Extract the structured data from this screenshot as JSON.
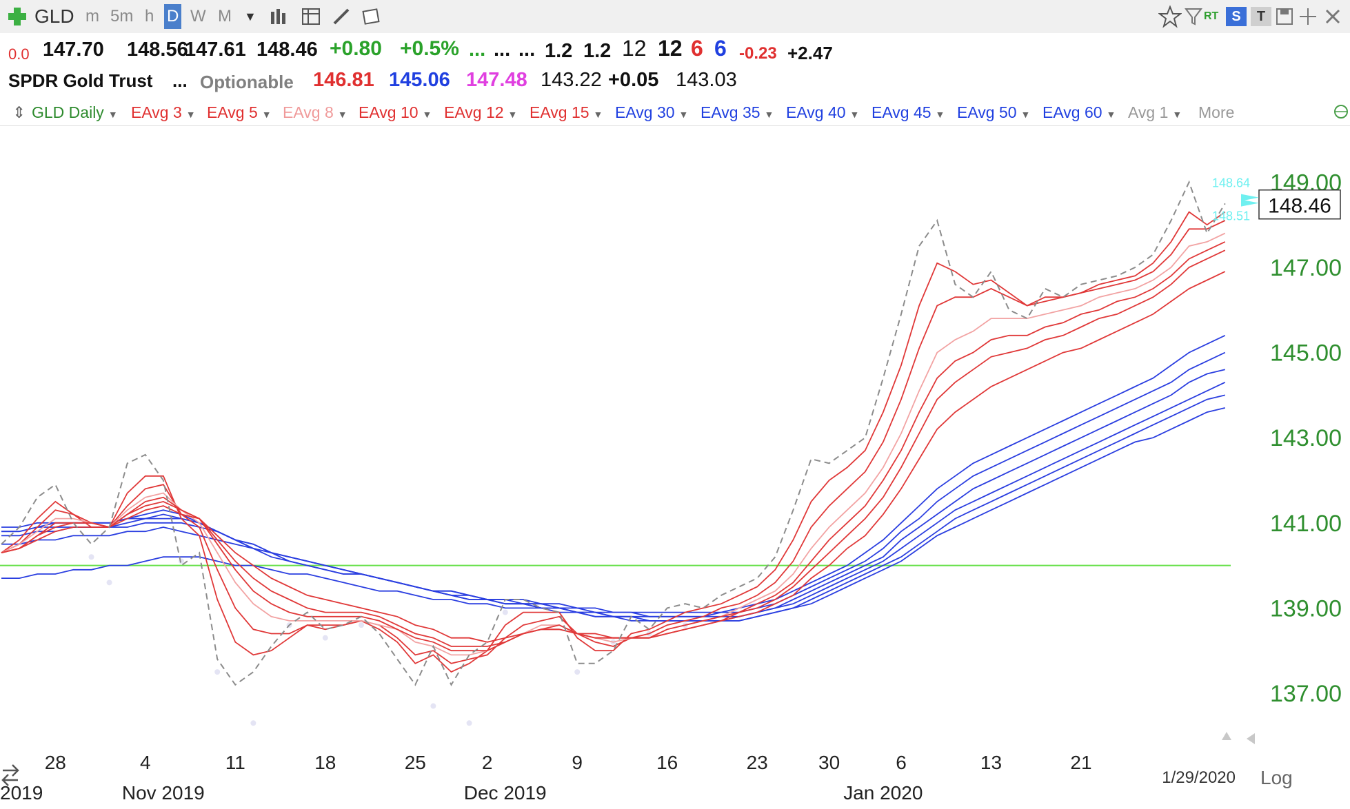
{
  "toolbar": {
    "symbol": "GLD",
    "intervals": [
      "m",
      "5m",
      "h",
      "D",
      "W",
      "M"
    ],
    "active_interval": "D",
    "right_icons": [
      "star-icon",
      "filter-icon",
      "rt-icon",
      "s-icon",
      "t-icon",
      "save-icon",
      "move-icon",
      "close-icon"
    ],
    "rt_label": "RT",
    "s_label": "S",
    "t_label": "T"
  },
  "quote": {
    "row1": {
      "v0": "0.0",
      "open": "147.70",
      "high": "148.56",
      "low": "147.61",
      "close": "148.46",
      "change": "+0.80",
      "change_pct": "+0.5%",
      "dots1": "...",
      "dots2": "...",
      "dots3": "...",
      "v1": "1.2",
      "v2": "1.2",
      "v3": "12",
      "v4": "12",
      "v5": "6",
      "v6": "6",
      "v7": "-0.23",
      "v8": "+2.47"
    },
    "row2": {
      "name": "SPDR Gold Trust",
      "dots": "...",
      "optionable": "Optionable",
      "v1": "146.81",
      "v2": "145.06",
      "v3": "147.48",
      "v4": "143.22",
      "v5": "+0.05",
      "v6": "143.03"
    }
  },
  "indicators": [
    {
      "label": "GLD Daily",
      "color": "#2e8b2e"
    },
    {
      "label": "EAvg 3",
      "color": "#e03030"
    },
    {
      "label": "EAvg 5",
      "color": "#e03030"
    },
    {
      "label": "EAvg 8",
      "color": "#f09a9a"
    },
    {
      "label": "EAvg 10",
      "color": "#e03030"
    },
    {
      "label": "EAvg 12",
      "color": "#e03030"
    },
    {
      "label": "EAvg 15",
      "color": "#e03030"
    },
    {
      "label": "EAvg 30",
      "color": "#2040e0"
    },
    {
      "label": "EAvg 35",
      "color": "#2040e0"
    },
    {
      "label": "EAvg 40",
      "color": "#2040e0"
    },
    {
      "label": "EAvg 45",
      "color": "#2040e0"
    },
    {
      "label": "EAvg 50",
      "color": "#2040e0"
    },
    {
      "label": "EAvg 60",
      "color": "#2040e0"
    },
    {
      "label": "Avg 1",
      "color": "#999999"
    },
    {
      "label": "More",
      "color": "#999999"
    }
  ],
  "chart_data": {
    "type": "line",
    "y_ticks": [
      137,
      139,
      141,
      143,
      145,
      147,
      149
    ],
    "y_tick_labels": [
      "137.00",
      "139.00",
      "141.00",
      "143.00",
      "145.00",
      "147.00",
      "149.00"
    ],
    "ylim": [
      135.9,
      150.3
    ],
    "last_price_label": "148.46",
    "last_price": 148.46,
    "flag_labels": [
      "148.64",
      "148.51"
    ],
    "flag_values": [
      148.64,
      148.51
    ],
    "reference_line": 140.0,
    "x_tick_labels": [
      "28",
      "4",
      "11",
      "18",
      "25",
      "2",
      "9",
      "16",
      "23",
      "30",
      "6",
      "13",
      "21"
    ],
    "x_tick_index": [
      3,
      8,
      13,
      18,
      23,
      27,
      32,
      37,
      42,
      46,
      50,
      55,
      60
    ],
    "month_labels": [
      "2019",
      "Nov 2019",
      "Dec 2019",
      "Jan 2020"
    ],
    "month_label_index": [
      0,
      8,
      27,
      48
    ],
    "date_label": "1/29/2020",
    "scale_label": "Log",
    "price": [
      140.5,
      140.9,
      141.6,
      141.9,
      141.0,
      140.5,
      140.9,
      142.4,
      142.6,
      142.0,
      140.0,
      140.3,
      137.8,
      137.2,
      137.5,
      138.1,
      138.6,
      138.9,
      138.5,
      138.6,
      138.8,
      138.4,
      137.8,
      137.2,
      138.1,
      137.2,
      137.9,
      138.2,
      139.2,
      139.2,
      139.0,
      138.9,
      137.7,
      137.7,
      138.0,
      138.8,
      138.5,
      139.0,
      139.1,
      139.0,
      139.3,
      139.5,
      139.7,
      140.2,
      141.3,
      142.5,
      142.4,
      142.7,
      143.0,
      144.4,
      145.9,
      147.5,
      148.1,
      146.6,
      146.3,
      146.9,
      146.0,
      145.8,
      146.5,
      146.3,
      146.6,
      146.7,
      146.8,
      147.0,
      147.3,
      148.1,
      149.0,
      147.8,
      148.5
    ],
    "lows": [
      [
        5,
        140.2
      ],
      [
        6,
        139.6
      ],
      [
        10,
        140.1
      ],
      [
        12,
        137.5
      ],
      [
        14,
        136.3
      ],
      [
        16,
        138.6
      ],
      [
        18,
        138.3
      ],
      [
        20,
        138.6
      ],
      [
        24,
        136.7
      ],
      [
        26,
        136.3
      ],
      [
        28,
        138.9
      ],
      [
        32,
        137.5
      ],
      [
        34,
        138.2
      ],
      [
        36,
        138.4
      ],
      [
        38,
        138.6
      ]
    ],
    "series_red": [
      {
        "name": "EAvg 3",
        "values": [
          140.3,
          140.6,
          141.1,
          141.5,
          141.2,
          140.9,
          140.9,
          141.7,
          142.1,
          142.1,
          141.1,
          140.7,
          139.2,
          138.2,
          137.9,
          138.0,
          138.3,
          138.6,
          138.5,
          138.6,
          138.7,
          138.5,
          138.2,
          137.7,
          137.9,
          137.5,
          137.7,
          138.0,
          138.6,
          138.9,
          138.9,
          138.9,
          138.3,
          138.0,
          138.0,
          138.4,
          138.5,
          138.7,
          138.9,
          139.0,
          139.1,
          139.3,
          139.5,
          139.9,
          140.6,
          141.5,
          142.0,
          142.3,
          142.7,
          143.6,
          144.7,
          146.1,
          147.1,
          146.9,
          146.6,
          146.7,
          146.4,
          146.1,
          146.3,
          146.3,
          146.4,
          146.6,
          146.7,
          146.8,
          147.1,
          147.6,
          148.3,
          148.0,
          148.3
        ]
      },
      {
        "name": "EAvg 5",
        "values": [
          140.3,
          140.5,
          140.9,
          141.3,
          141.2,
          141.0,
          140.9,
          141.4,
          141.8,
          141.9,
          141.2,
          140.9,
          139.9,
          139.0,
          138.5,
          138.4,
          138.4,
          138.6,
          138.6,
          138.6,
          138.7,
          138.6,
          138.3,
          137.9,
          138.0,
          137.7,
          137.8,
          137.9,
          138.3,
          138.6,
          138.7,
          138.8,
          138.4,
          138.2,
          138.1,
          138.3,
          138.4,
          138.6,
          138.7,
          138.8,
          139.0,
          139.1,
          139.3,
          139.6,
          140.1,
          140.9,
          141.4,
          141.8,
          142.2,
          142.9,
          143.9,
          145.1,
          146.1,
          146.3,
          146.3,
          146.5,
          146.3,
          146.1,
          146.2,
          146.3,
          146.4,
          146.5,
          146.6,
          146.7,
          146.9,
          147.3,
          147.9,
          147.9,
          148.1
        ]
      },
      {
        "name": "EAvg 8",
        "values": [
          140.3,
          140.5,
          140.8,
          141.1,
          141.1,
          141.0,
          140.9,
          141.3,
          141.6,
          141.7,
          141.3,
          141.0,
          140.3,
          139.6,
          139.1,
          138.8,
          138.7,
          138.7,
          138.7,
          138.7,
          138.7,
          138.6,
          138.5,
          138.2,
          138.1,
          137.9,
          137.9,
          138.0,
          138.2,
          138.4,
          138.6,
          138.6,
          138.4,
          138.3,
          138.2,
          138.3,
          138.3,
          138.5,
          138.6,
          138.7,
          138.8,
          139.0,
          139.2,
          139.4,
          139.8,
          140.4,
          140.9,
          141.3,
          141.7,
          142.3,
          143.1,
          144.1,
          145.0,
          145.3,
          145.5,
          145.8,
          145.8,
          145.8,
          145.9,
          146.0,
          146.1,
          146.3,
          146.4,
          146.5,
          146.7,
          147.0,
          147.5,
          147.6,
          147.8
        ]
      },
      {
        "name": "EAvg 10",
        "values": [
          140.3,
          140.4,
          140.7,
          141.0,
          141.0,
          141.0,
          140.9,
          141.2,
          141.5,
          141.6,
          141.3,
          141.1,
          140.5,
          139.9,
          139.4,
          139.1,
          138.9,
          138.8,
          138.8,
          138.8,
          138.8,
          138.7,
          138.5,
          138.3,
          138.2,
          138.0,
          138.0,
          138.0,
          138.2,
          138.4,
          138.5,
          138.6,
          138.4,
          138.3,
          138.3,
          138.3,
          138.3,
          138.5,
          138.6,
          138.7,
          138.8,
          138.9,
          139.1,
          139.3,
          139.6,
          140.1,
          140.6,
          141.0,
          141.4,
          142.0,
          142.7,
          143.6,
          144.4,
          144.8,
          145.0,
          145.3,
          145.4,
          145.4,
          145.6,
          145.7,
          145.9,
          146.0,
          146.2,
          146.3,
          146.5,
          146.8,
          147.2,
          147.4,
          147.6
        ]
      },
      {
        "name": "EAvg 12",
        "values": [
          140.3,
          140.4,
          140.7,
          140.9,
          141.0,
          141.0,
          140.9,
          141.2,
          141.4,
          141.5,
          141.3,
          141.1,
          140.6,
          140.1,
          139.7,
          139.4,
          139.2,
          139.0,
          138.9,
          138.9,
          138.9,
          138.8,
          138.6,
          138.4,
          138.3,
          138.1,
          138.1,
          138.1,
          138.2,
          138.4,
          138.5,
          138.5,
          138.4,
          138.3,
          138.3,
          138.3,
          138.3,
          138.4,
          138.5,
          138.6,
          138.7,
          138.9,
          139.0,
          139.2,
          139.5,
          139.9,
          140.3,
          140.7,
          141.1,
          141.6,
          142.3,
          143.1,
          143.9,
          144.3,
          144.6,
          144.9,
          145.0,
          145.1,
          145.3,
          145.4,
          145.6,
          145.8,
          145.9,
          146.1,
          146.3,
          146.6,
          147.0,
          147.2,
          147.4
        ]
      },
      {
        "name": "EAvg 15",
        "values": [
          140.3,
          140.4,
          140.6,
          140.8,
          140.9,
          140.9,
          140.9,
          141.1,
          141.3,
          141.4,
          141.2,
          141.1,
          140.7,
          140.3,
          140.0,
          139.7,
          139.5,
          139.3,
          139.2,
          139.1,
          139.0,
          138.9,
          138.8,
          138.6,
          138.5,
          138.3,
          138.3,
          138.2,
          138.3,
          138.4,
          138.5,
          138.5,
          138.4,
          138.4,
          138.3,
          138.3,
          138.3,
          138.4,
          138.5,
          138.6,
          138.7,
          138.8,
          138.9,
          139.1,
          139.3,
          139.7,
          140.0,
          140.4,
          140.7,
          141.2,
          141.8,
          142.5,
          143.2,
          143.6,
          143.9,
          144.2,
          144.4,
          144.6,
          144.8,
          145.0,
          145.1,
          145.3,
          145.5,
          145.7,
          145.9,
          146.2,
          146.5,
          146.7,
          146.9
        ]
      }
    ],
    "series_blue": [
      {
        "name": "EAvg 30",
        "values": [
          140.9,
          140.9,
          141.0,
          141.0,
          141.0,
          141.0,
          141.0,
          141.1,
          141.2,
          141.3,
          141.2,
          141.0,
          140.8,
          140.6,
          140.4,
          140.2,
          140.1,
          140.0,
          139.9,
          139.8,
          139.8,
          139.7,
          139.6,
          139.5,
          139.4,
          139.3,
          139.2,
          139.2,
          139.2,
          139.2,
          139.1,
          139.1,
          139.0,
          139.0,
          138.9,
          138.9,
          138.9,
          138.9,
          138.9,
          138.9,
          138.9,
          139.0,
          139.1,
          139.2,
          139.4,
          139.6,
          139.8,
          140.0,
          140.3,
          140.6,
          141.0,
          141.4,
          141.8,
          142.1,
          142.4,
          142.6,
          142.8,
          143.0,
          143.2,
          143.4,
          143.6,
          143.8,
          144.0,
          144.2,
          144.4,
          144.7,
          145.0,
          145.2,
          145.4
        ]
      },
      {
        "name": "EAvg 35",
        "values": [
          140.8,
          140.8,
          140.9,
          141.0,
          141.0,
          141.0,
          141.0,
          141.1,
          141.1,
          141.2,
          141.1,
          141.0,
          140.8,
          140.6,
          140.4,
          140.3,
          140.1,
          140.0,
          139.9,
          139.8,
          139.8,
          139.7,
          139.6,
          139.5,
          139.4,
          139.3,
          139.2,
          139.2,
          139.1,
          139.1,
          139.1,
          139.0,
          139.0,
          138.9,
          138.9,
          138.9,
          138.8,
          138.8,
          138.8,
          138.8,
          138.9,
          138.9,
          139.0,
          139.1,
          139.3,
          139.5,
          139.7,
          139.9,
          140.1,
          140.4,
          140.8,
          141.1,
          141.5,
          141.8,
          142.1,
          142.3,
          142.5,
          142.7,
          142.9,
          143.1,
          143.3,
          143.5,
          143.7,
          143.9,
          144.1,
          144.3,
          144.6,
          144.8,
          145.0
        ]
      },
      {
        "name": "EAvg 40",
        "values": [
          140.8,
          140.8,
          140.9,
          140.9,
          140.9,
          140.9,
          140.9,
          141.0,
          141.1,
          141.1,
          141.1,
          141.0,
          140.8,
          140.6,
          140.5,
          140.3,
          140.2,
          140.1,
          140.0,
          139.9,
          139.8,
          139.7,
          139.6,
          139.5,
          139.4,
          139.3,
          139.3,
          139.2,
          139.1,
          139.1,
          139.0,
          139.0,
          138.9,
          138.9,
          138.8,
          138.8,
          138.8,
          138.8,
          138.8,
          138.8,
          138.8,
          138.8,
          138.9,
          139.0,
          139.2,
          139.4,
          139.6,
          139.8,
          140.0,
          140.2,
          140.6,
          140.9,
          141.2,
          141.5,
          141.8,
          142.0,
          142.2,
          142.4,
          142.6,
          142.8,
          143.0,
          143.2,
          143.4,
          143.6,
          143.8,
          144.0,
          144.3,
          144.5,
          144.6
        ]
      },
      {
        "name": "EAvg 45",
        "values": [
          140.7,
          140.7,
          140.8,
          140.8,
          140.9,
          140.9,
          140.9,
          140.9,
          141.0,
          141.0,
          141.0,
          140.9,
          140.8,
          140.6,
          140.5,
          140.3,
          140.2,
          140.1,
          140.0,
          139.9,
          139.8,
          139.7,
          139.6,
          139.5,
          139.4,
          139.4,
          139.3,
          139.2,
          139.1,
          139.1,
          139.0,
          139.0,
          138.9,
          138.8,
          138.8,
          138.7,
          138.7,
          138.7,
          138.7,
          138.7,
          138.7,
          138.8,
          138.9,
          139.0,
          139.1,
          139.3,
          139.5,
          139.7,
          139.9,
          140.1,
          140.4,
          140.7,
          141.0,
          141.3,
          141.5,
          141.7,
          141.9,
          142.1,
          142.3,
          142.5,
          142.7,
          142.9,
          143.1,
          143.3,
          143.5,
          143.7,
          143.9,
          144.1,
          144.3
        ]
      },
      {
        "name": "EAvg 50",
        "values": [
          140.5,
          140.5,
          140.6,
          140.6,
          140.7,
          140.7,
          140.7,
          140.8,
          140.8,
          140.9,
          140.8,
          140.7,
          140.6,
          140.5,
          140.4,
          140.3,
          140.2,
          140.1,
          140.0,
          139.9,
          139.8,
          139.7,
          139.6,
          139.5,
          139.4,
          139.4,
          139.3,
          139.2,
          139.2,
          139.1,
          139.1,
          139.0,
          138.9,
          138.9,
          138.8,
          138.8,
          138.7,
          138.7,
          138.7,
          138.7,
          138.7,
          138.7,
          138.8,
          138.9,
          139.0,
          139.2,
          139.4,
          139.6,
          139.8,
          140.0,
          140.2,
          140.5,
          140.8,
          141.1,
          141.3,
          141.5,
          141.7,
          141.9,
          142.1,
          142.3,
          142.5,
          142.7,
          142.9,
          143.1,
          143.3,
          143.5,
          143.7,
          143.9,
          144.0
        ]
      },
      {
        "name": "EAvg 60",
        "values": [
          139.7,
          139.7,
          139.8,
          139.8,
          139.9,
          139.9,
          140.0,
          140.0,
          140.1,
          140.2,
          140.2,
          140.2,
          140.1,
          140.0,
          140.0,
          139.9,
          139.8,
          139.8,
          139.7,
          139.6,
          139.5,
          139.4,
          139.4,
          139.3,
          139.2,
          139.2,
          139.1,
          139.1,
          139.0,
          139.0,
          139.0,
          138.9,
          138.9,
          138.8,
          138.8,
          138.8,
          138.7,
          138.7,
          138.7,
          138.7,
          138.7,
          138.7,
          138.8,
          138.9,
          139.0,
          139.1,
          139.3,
          139.5,
          139.7,
          139.9,
          140.1,
          140.4,
          140.7,
          140.9,
          141.1,
          141.3,
          141.5,
          141.7,
          141.9,
          142.1,
          142.3,
          142.5,
          142.7,
          142.9,
          143.0,
          143.2,
          143.4,
          143.6,
          143.7
        ]
      }
    ]
  }
}
